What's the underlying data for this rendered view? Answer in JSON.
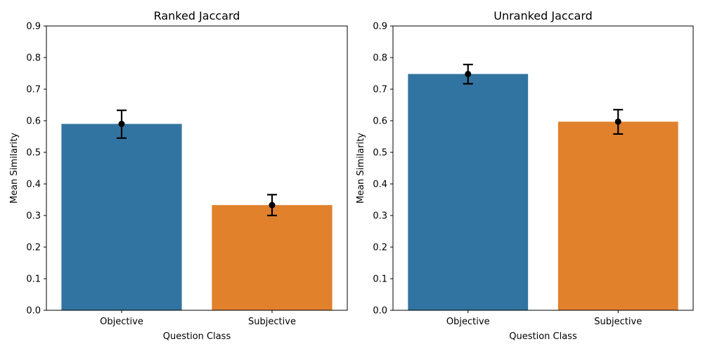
{
  "chart_data": [
    {
      "type": "bar",
      "title": "Ranked Jaccard",
      "xlabel": "Question Class",
      "ylabel": "Mean Similarity",
      "categories": [
        "Objective",
        "Subjective"
      ],
      "values": [
        0.59,
        0.333
      ],
      "error_low": [
        0.545,
        0.3
      ],
      "error_high": [
        0.633,
        0.366
      ],
      "ylim": [
        0,
        0.9
      ],
      "yticks": [
        "0.0",
        "0.1",
        "0.2",
        "0.3",
        "0.4",
        "0.5",
        "0.6",
        "0.7",
        "0.8",
        "0.9"
      ],
      "colors": [
        "#3274a1",
        "#e1812c"
      ],
      "grid": false
    },
    {
      "type": "bar",
      "title": "Unranked Jaccard",
      "xlabel": "Question Class",
      "ylabel": "Mean Similarity",
      "categories": [
        "Objective",
        "Subjective"
      ],
      "values": [
        0.748,
        0.597
      ],
      "error_low": [
        0.717,
        0.558
      ],
      "error_high": [
        0.778,
        0.635
      ],
      "ylim": [
        0,
        0.9
      ],
      "yticks": [
        "0.0",
        "0.1",
        "0.2",
        "0.3",
        "0.4",
        "0.5",
        "0.6",
        "0.7",
        "0.8",
        "0.9"
      ],
      "colors": [
        "#3274a1",
        "#e1812c"
      ],
      "grid": false
    }
  ]
}
